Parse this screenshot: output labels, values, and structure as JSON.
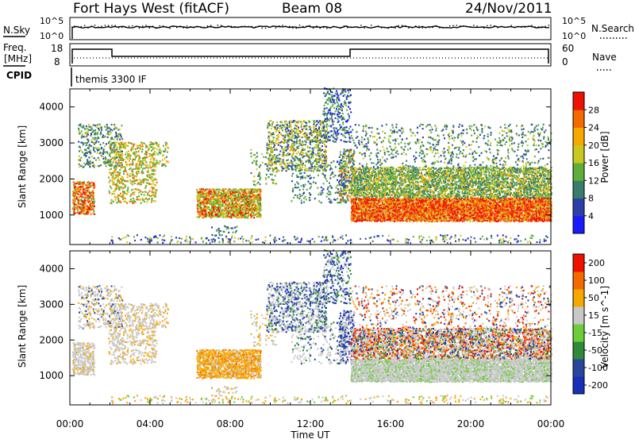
{
  "header": {
    "station": "Fort Hays West (fitACF)",
    "beam": "Beam 08",
    "date": "24/Nov/2011"
  },
  "noise_panel": {
    "left_label": "N.Sky",
    "right_label": "N.Search",
    "left_ticks": [
      "10^5",
      "10^0"
    ],
    "right_ticks": [
      "10^5",
      "10^0"
    ]
  },
  "freq_panel": {
    "left_label_1": "Freq.",
    "left_label_2": "[MHz]",
    "left_ticks": [
      "18",
      "8"
    ],
    "right_label": "Nave",
    "right_ticks": [
      "60",
      "0"
    ]
  },
  "cpid_panel": {
    "label": "CPID",
    "program": "themis 3300 IF"
  },
  "chart_data": [
    {
      "type": "heatmap",
      "parameter": "Power",
      "ylabel": "Slant Range [km]",
      "xlabel": "Time UT",
      "x_ticks": [
        "00:00",
        "04:00",
        "08:00",
        "12:00",
        "16:00",
        "20:00",
        "00:00"
      ],
      "ylim": [
        180,
        4500
      ],
      "y_ticks": [
        1000,
        2000,
        3000,
        4000
      ],
      "colorbar_label": "Power [dB]",
      "colorbar_ticks": [
        "4",
        "8",
        "12",
        "16",
        "20",
        "24",
        "28"
      ],
      "colors": [
        "#1a1aff",
        "#2a3fa8",
        "#3b7b69",
        "#5fad3a",
        "#c8c81e",
        "#f5a800",
        "#f56a00",
        "#ee1100"
      ]
    },
    {
      "type": "heatmap",
      "parameter": "Velocity",
      "ylabel": "Slant Range [km]",
      "xlabel": "Time UT",
      "x_ticks": [
        "00:00",
        "04:00",
        "08:00",
        "12:00",
        "16:00",
        "20:00",
        "00:00"
      ],
      "ylim": [
        180,
        4500
      ],
      "y_ticks": [
        1000,
        2000,
        3000,
        4000
      ],
      "colorbar_label": "Velocity [m s^-1]",
      "colorbar_ticks": [
        "200",
        "100",
        "50",
        "15",
        "-15",
        "-50",
        "-100",
        "-200"
      ],
      "colors": [
        "#1830b8",
        "#28479a",
        "#2e8a3a",
        "#6ccc3a",
        "#c8c8c8",
        "#f5a800",
        "#f56a00",
        "#ee1100"
      ]
    }
  ]
}
